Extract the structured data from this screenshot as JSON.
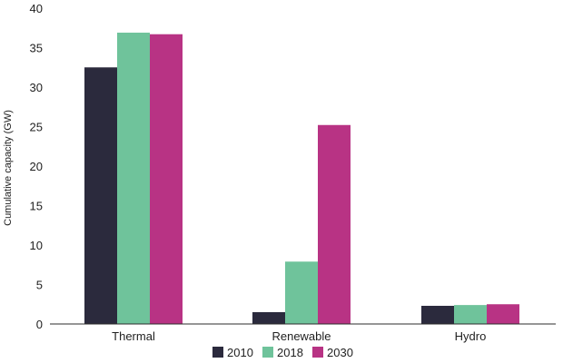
{
  "chart_data": {
    "type": "bar",
    "categories": [
      "Thermal",
      "Renewable",
      "Hydro"
    ],
    "series": [
      {
        "name": "2010",
        "color": "#2b2a3d",
        "values": [
          32.5,
          1.5,
          2.3
        ]
      },
      {
        "name": "2018",
        "color": "#6fc39b",
        "values": [
          36.9,
          7.9,
          2.4
        ]
      },
      {
        "name": "2030",
        "color": "#b83384",
        "values": [
          36.7,
          25.2,
          2.5
        ]
      }
    ],
    "title": "",
    "xlabel": "",
    "ylabel": "Cumulative capacity (GW)",
    "ylim": [
      0,
      40
    ],
    "yticks": [
      0,
      5,
      10,
      15,
      20,
      25,
      30,
      35,
      40
    ],
    "grid": false,
    "legend_position": "bottom-center"
  }
}
